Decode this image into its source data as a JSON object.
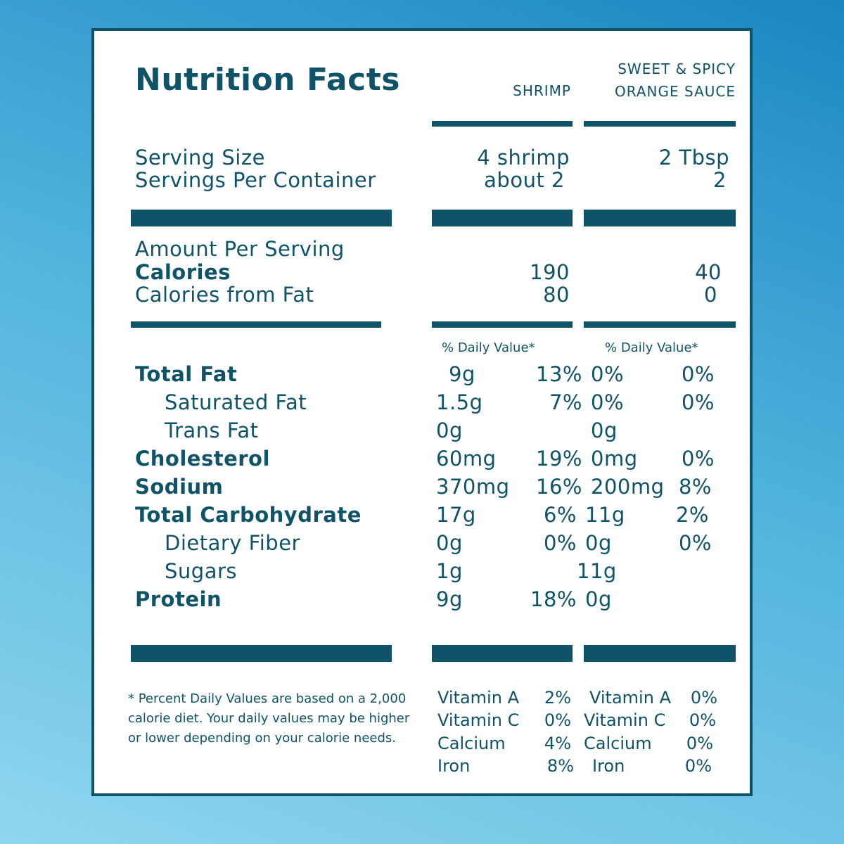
{
  "title": "Nutrition Facts",
  "columns": {
    "shrimp": "SHRIMP",
    "sauce_line1": "SWEET & SPICY",
    "sauce_line2": "ORANGE SAUCE"
  },
  "serving": {
    "size_label": "Serving Size",
    "per_container_label": "Servings Per Container",
    "shrimp_size": "4 shrimp",
    "shrimp_per_container": "about 2",
    "sauce_size": "2 Tbsp",
    "sauce_per_container": "2"
  },
  "amount": {
    "header": "Amount Per Serving",
    "calories_label": "Calories",
    "calories_fat_label": "Calories from Fat",
    "shrimp_calories": "190",
    "shrimp_calories_fat": "80",
    "sauce_calories": "40",
    "sauce_calories_fat": "0"
  },
  "daily_value_header": "% Daily Value*",
  "nutrients": [
    {
      "label": "Total Fat",
      "shrimp_amt": "9g",
      "shrimp_dv": "13%",
      "sauce_amt": "0%",
      "sauce_dv": "0%"
    },
    {
      "label": "Saturated Fat",
      "shrimp_amt": "1.5g",
      "shrimp_dv": "7%",
      "sauce_amt": "0%",
      "sauce_dv": "0%"
    },
    {
      "label": "Trans Fat",
      "shrimp_amt": "0g",
      "shrimp_dv": "",
      "sauce_amt": "0g",
      "sauce_dv": ""
    },
    {
      "label": "Cholesterol",
      "shrimp_amt": "60mg",
      "shrimp_dv": "19%",
      "sauce_amt": "0mg",
      "sauce_dv": "0%"
    },
    {
      "label": "Sodium",
      "shrimp_amt": "370mg",
      "shrimp_dv": "16%",
      "sauce_amt": "200mg",
      "sauce_dv": "8%"
    },
    {
      "label": "Total Carbohydrate",
      "shrimp_amt": "17g",
      "shrimp_dv": "6%",
      "sauce_amt": "11g",
      "sauce_dv": "2%"
    },
    {
      "label": "Dietary Fiber",
      "shrimp_amt": "0g",
      "shrimp_dv": "0%",
      "sauce_amt": "0g",
      "sauce_dv": "0%"
    },
    {
      "label": "Sugars",
      "shrimp_amt": "1g",
      "shrimp_dv": "",
      "sauce_amt": "11g",
      "sauce_dv": ""
    },
    {
      "label": "Protein",
      "shrimp_amt": "9g",
      "shrimp_dv": "18%",
      "sauce_amt": "0g",
      "sauce_dv": ""
    }
  ],
  "footnote": "* Percent Daily Values are based on a 2,000 calorie diet. Your daily values may be higher or lower depending on your calorie needs.",
  "vitamins_shrimp": [
    {
      "label": "Vitamin A",
      "value": "2%"
    },
    {
      "label": "Vitamin C",
      "value": "0%"
    },
    {
      "label": "Calcium",
      "value": "4%"
    },
    {
      "label": "Iron",
      "value": "8%"
    }
  ],
  "vitamins_sauce": [
    {
      "label": "Vitamin A",
      "value": "0%"
    },
    {
      "label": "Vitamin C",
      "value": "0%"
    },
    {
      "label": "Calcium",
      "value": "0%"
    },
    {
      "label": "Iron",
      "value": "0%"
    }
  ],
  "colors": {
    "ink": "#0f5368",
    "panel": "#ffffff",
    "background_top": "#1a86c2",
    "background_bottom": "#8fd6ee"
  }
}
